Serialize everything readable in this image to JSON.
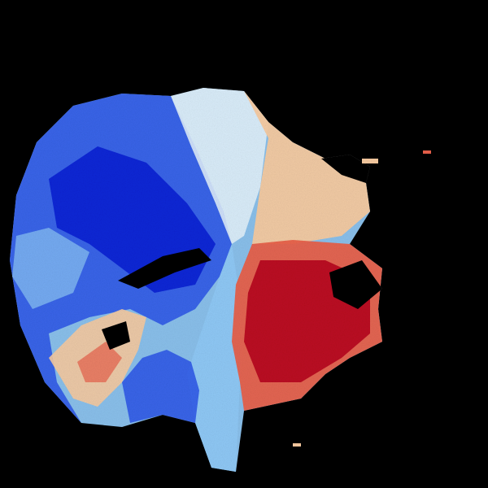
{
  "image": {
    "background_color": "#000000",
    "colormap": {
      "inbound_strong": "#0a1fd4",
      "inbound_medium": "#2a55e8",
      "inbound_light": "#8fc8f5",
      "near_zero": "#e8f4fb",
      "outbound_light": "#f7caa0",
      "outbound_medium": "#e8604a",
      "outbound_strong": "#b8081f"
    }
  }
}
